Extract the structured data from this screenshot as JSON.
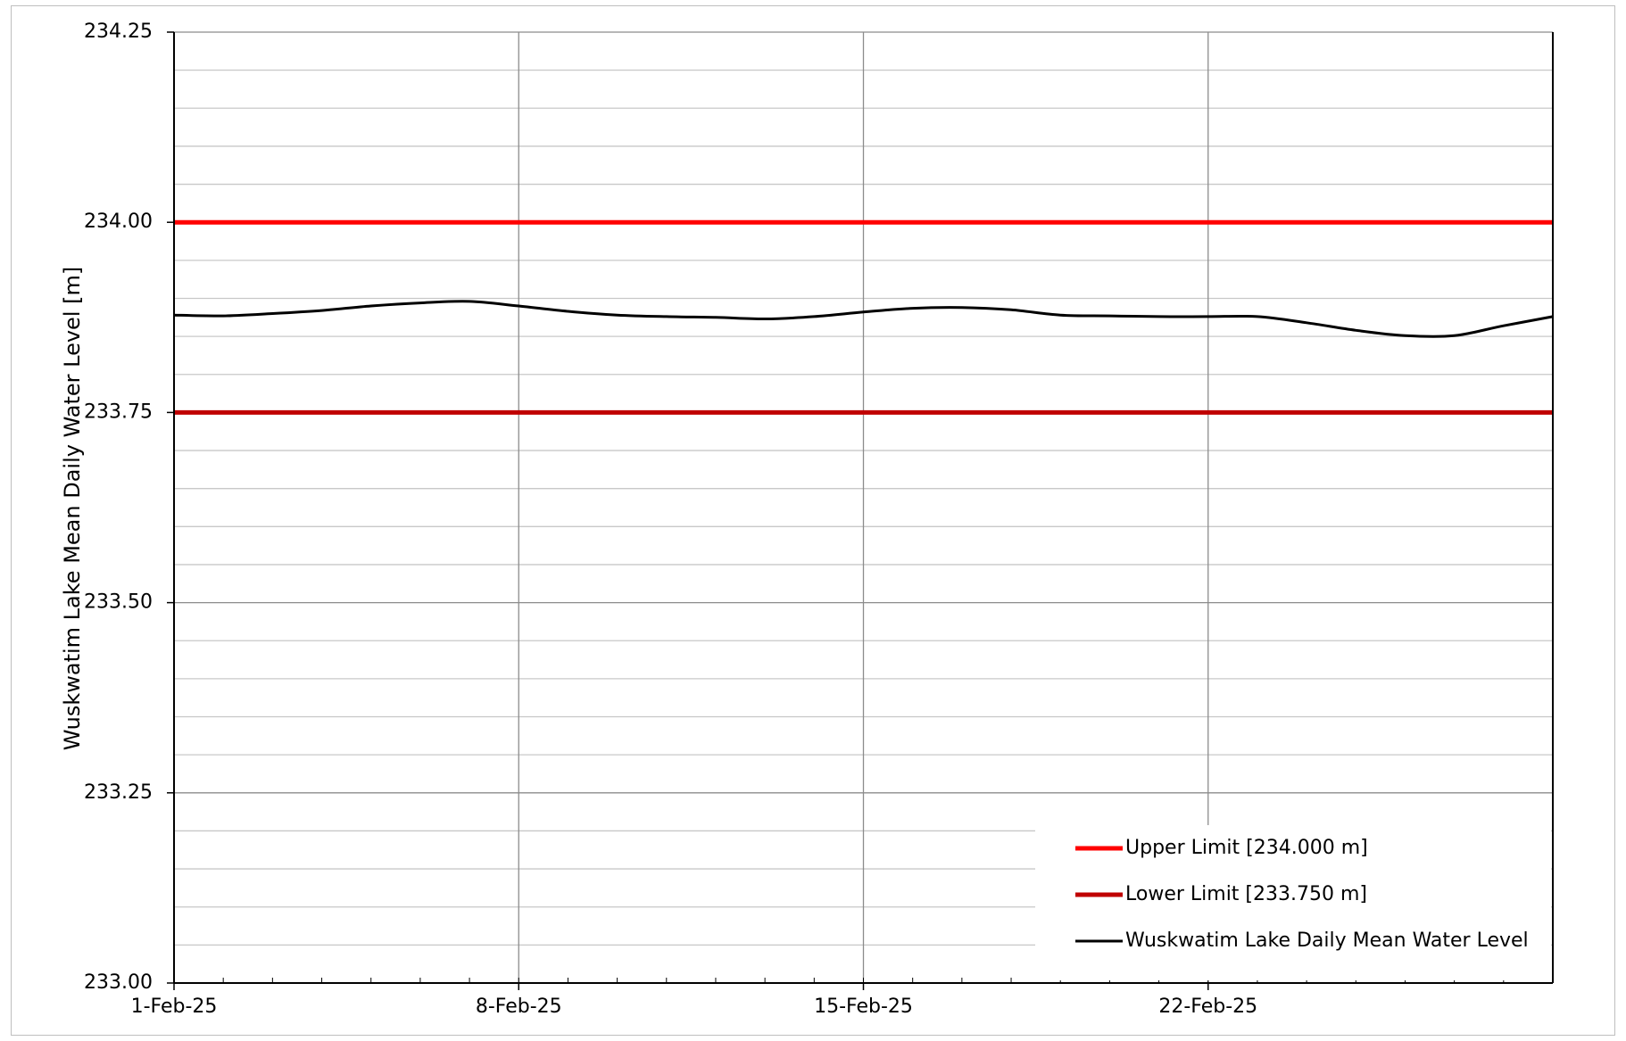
{
  "chart_data": {
    "type": "line",
    "title": "",
    "xlabel": "",
    "ylabel": "Wuskwatim Lake Mean Daily Water Level [m]",
    "ylim": [
      233.0,
      234.25
    ],
    "yticks": [
      "233.00",
      "233.25",
      "233.50",
      "233.75",
      "234.00",
      "234.25"
    ],
    "xlim": [
      "2025-02-01",
      "2025-03-01"
    ],
    "xticks": [
      {
        "date": "2025-02-01",
        "label": "1-Feb-25"
      },
      {
        "date": "2025-02-08",
        "label": "8-Feb-25"
      },
      {
        "date": "2025-02-15",
        "label": "15-Feb-25"
      },
      {
        "date": "2025-02-22",
        "label": "22-Feb-25"
      }
    ],
    "grid": true,
    "legend_position": "bottom-right",
    "series": [
      {
        "name": "Upper Limit [234.000 m]",
        "color": "#ff0000",
        "x": [
          "2025-02-01",
          "2025-03-01"
        ],
        "y": [
          234.0,
          234.0
        ]
      },
      {
        "name": "Lower Limit [233.750 m]",
        "color": "#c00000",
        "x": [
          "2025-02-01",
          "2025-03-01"
        ],
        "y": [
          233.75,
          233.75
        ]
      },
      {
        "name": "Wuskwatim Lake Daily Mean Water Level",
        "color": "#000000",
        "x": [
          "2025-02-01",
          "2025-02-02",
          "2025-02-03",
          "2025-02-04",
          "2025-02-05",
          "2025-02-06",
          "2025-02-07",
          "2025-02-08",
          "2025-02-09",
          "2025-02-10",
          "2025-02-11",
          "2025-02-12",
          "2025-02-13",
          "2025-02-14",
          "2025-02-15",
          "2025-02-16",
          "2025-02-17",
          "2025-02-18",
          "2025-02-19",
          "2025-02-20",
          "2025-02-21",
          "2025-02-22",
          "2025-02-23",
          "2025-02-24",
          "2025-02-25",
          "2025-02-26",
          "2025-02-27",
          "2025-02-28",
          "2025-03-01"
        ],
        "y": [
          233.878,
          233.877,
          233.88,
          233.884,
          233.89,
          233.894,
          233.896,
          233.89,
          233.883,
          233.878,
          233.876,
          233.875,
          233.873,
          233.876,
          233.882,
          233.887,
          233.888,
          233.885,
          233.878,
          233.877,
          233.876,
          233.876,
          233.876,
          233.868,
          233.858,
          233.851,
          233.851,
          233.864,
          233.876
        ]
      }
    ]
  }
}
